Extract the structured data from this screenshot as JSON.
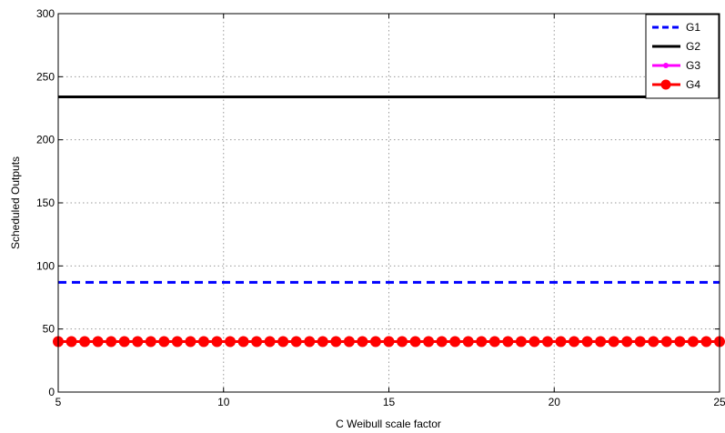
{
  "chart_data": {
    "type": "line",
    "xlabel": "C Weibull scale factor",
    "ylabel": "Scheduled Outputs",
    "xlim": [
      5,
      25
    ],
    "ylim": [
      0,
      300
    ],
    "xticks": [
      5,
      10,
      15,
      20,
      25
    ],
    "yticks": [
      0,
      50,
      100,
      150,
      200,
      250,
      300
    ],
    "grid": true,
    "legend_position": "top-right",
    "x": [
      5,
      5.4,
      5.8,
      6.2,
      6.6,
      7,
      7.4,
      7.8,
      8.2,
      8.6,
      9,
      9.4,
      9.8,
      10.2,
      10.6,
      11,
      11.4,
      11.8,
      12.2,
      12.6,
      13,
      13.4,
      13.8,
      14.2,
      14.6,
      15,
      15.4,
      15.8,
      16.2,
      16.6,
      17,
      17.4,
      17.8,
      18.2,
      18.6,
      19,
      19.4,
      19.8,
      20.2,
      20.6,
      21,
      21.4,
      21.8,
      22.2,
      22.6,
      23,
      23.4,
      23.8,
      24.2,
      24.6,
      25
    ],
    "series": [
      {
        "name": "G1",
        "value": 87,
        "color": "#0000ff",
        "style": "dashed",
        "marker": "none"
      },
      {
        "name": "G2",
        "value": 234,
        "color": "#000000",
        "style": "solid",
        "marker": "none"
      },
      {
        "name": "G3",
        "value": 40,
        "color": "#ff00ff",
        "style": "solid",
        "marker": "dot"
      },
      {
        "name": "G4",
        "value": 40,
        "color": "#ff0000",
        "style": "solid",
        "marker": "circle"
      }
    ]
  }
}
